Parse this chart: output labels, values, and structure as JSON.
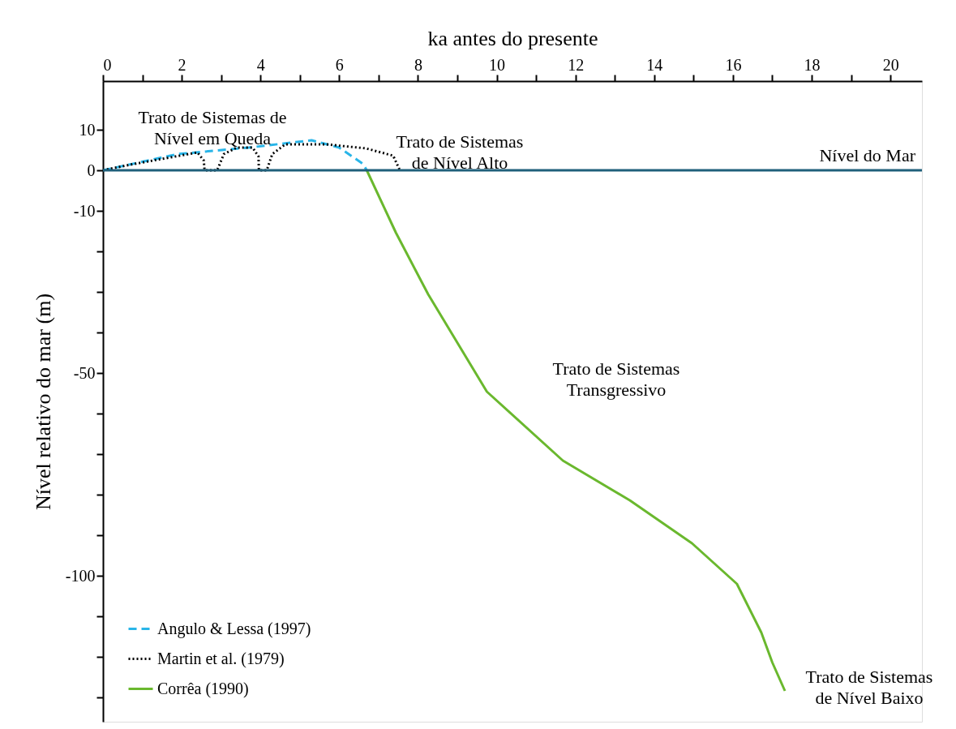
{
  "chart_data": {
    "type": "line",
    "xlabel": "ka antes do presente",
    "ylabel": "Nível relativo do mar (m)",
    "xlim": [
      0,
      20.8
    ],
    "ylim": [
      -136,
      22
    ],
    "xticks": [
      0,
      {
        "value": 1,
        "label": null
      },
      2,
      {
        "value": 3,
        "label": null
      },
      4,
      {
        "value": 5,
        "label": null
      },
      6,
      {
        "value": 7,
        "label": null
      },
      8,
      {
        "value": 9,
        "label": null
      },
      10,
      {
        "value": 11,
        "label": null
      },
      12,
      {
        "value": 13,
        "label": null
      },
      14,
      {
        "value": 15,
        "label": null
      },
      16,
      {
        "value": 17,
        "label": null
      },
      18,
      {
        "value": 19,
        "label": null
      },
      20
    ],
    "yticks": [
      10,
      0,
      -10,
      {
        "value": -20,
        "label": null
      },
      {
        "value": -30,
        "label": null
      },
      {
        "value": -40,
        "label": null
      },
      -50,
      {
        "value": -60,
        "label": null
      },
      {
        "value": -70,
        "label": null
      },
      {
        "value": -80,
        "label": null
      },
      {
        "value": -90,
        "label": null
      },
      -100,
      {
        "value": -110,
        "label": null
      },
      {
        "value": -120,
        "label": null
      },
      {
        "value": -130,
        "label": null
      }
    ],
    "grid": false,
    "legend": "bottom left",
    "marker": "none",
    "series": [
      {
        "name": "Angulo & Lessa (1997)",
        "color": "#29b5e8",
        "line_style": "dashed",
        "x": [
          0,
          1.9,
          3.7,
          5.3,
          6.0,
          6.6,
          6.7
        ],
        "values": [
          0,
          4,
          5.6,
          7.4,
          5.6,
          1.6,
          0
        ]
      },
      {
        "name": "Martin et al. (1979)",
        "color": "#000000",
        "line_style": "dotted",
        "x": [
          0,
          0.7,
          2.4,
          2.56,
          2.58,
          2.9,
          3.07,
          3.4,
          3.8,
          3.95,
          3.96,
          4.16,
          4.3,
          4.63,
          5.66,
          6.68,
          7.37,
          7.54
        ],
        "values": [
          0,
          1.4,
          4.4,
          2.4,
          0,
          0,
          4,
          5.6,
          5.6,
          3.4,
          0,
          0,
          4,
          6.4,
          6.4,
          5.4,
          3.6,
          0
        ]
      },
      {
        "name": "Corrêa (1990)",
        "color": "#6ab82e",
        "line_style": "solid",
        "x": [
          6.7,
          7.44,
          8.26,
          9.75,
          11.68,
          13.38,
          14.96,
          16.1,
          16.72,
          17.0,
          17.32
        ],
        "values": [
          0,
          -15.4,
          -30.6,
          -54.6,
          -71.6,
          -81.4,
          -92,
          -102,
          -114,
          -121.4,
          -128.4
        ]
      }
    ],
    "ref_lines": [
      {
        "axis": "y",
        "value": 0,
        "label": "Nível do Mar",
        "color": "#1f5f7a",
        "line_style": "solid"
      }
    ],
    "annotations": [
      "Trato de Sistemas de\nNível em Queda",
      "Trato de Sistemas\nde Nível Alto",
      "Trato de Sistemas\nTransgressivo",
      "Trato de Sistemas\nde Nível Baixo"
    ]
  }
}
